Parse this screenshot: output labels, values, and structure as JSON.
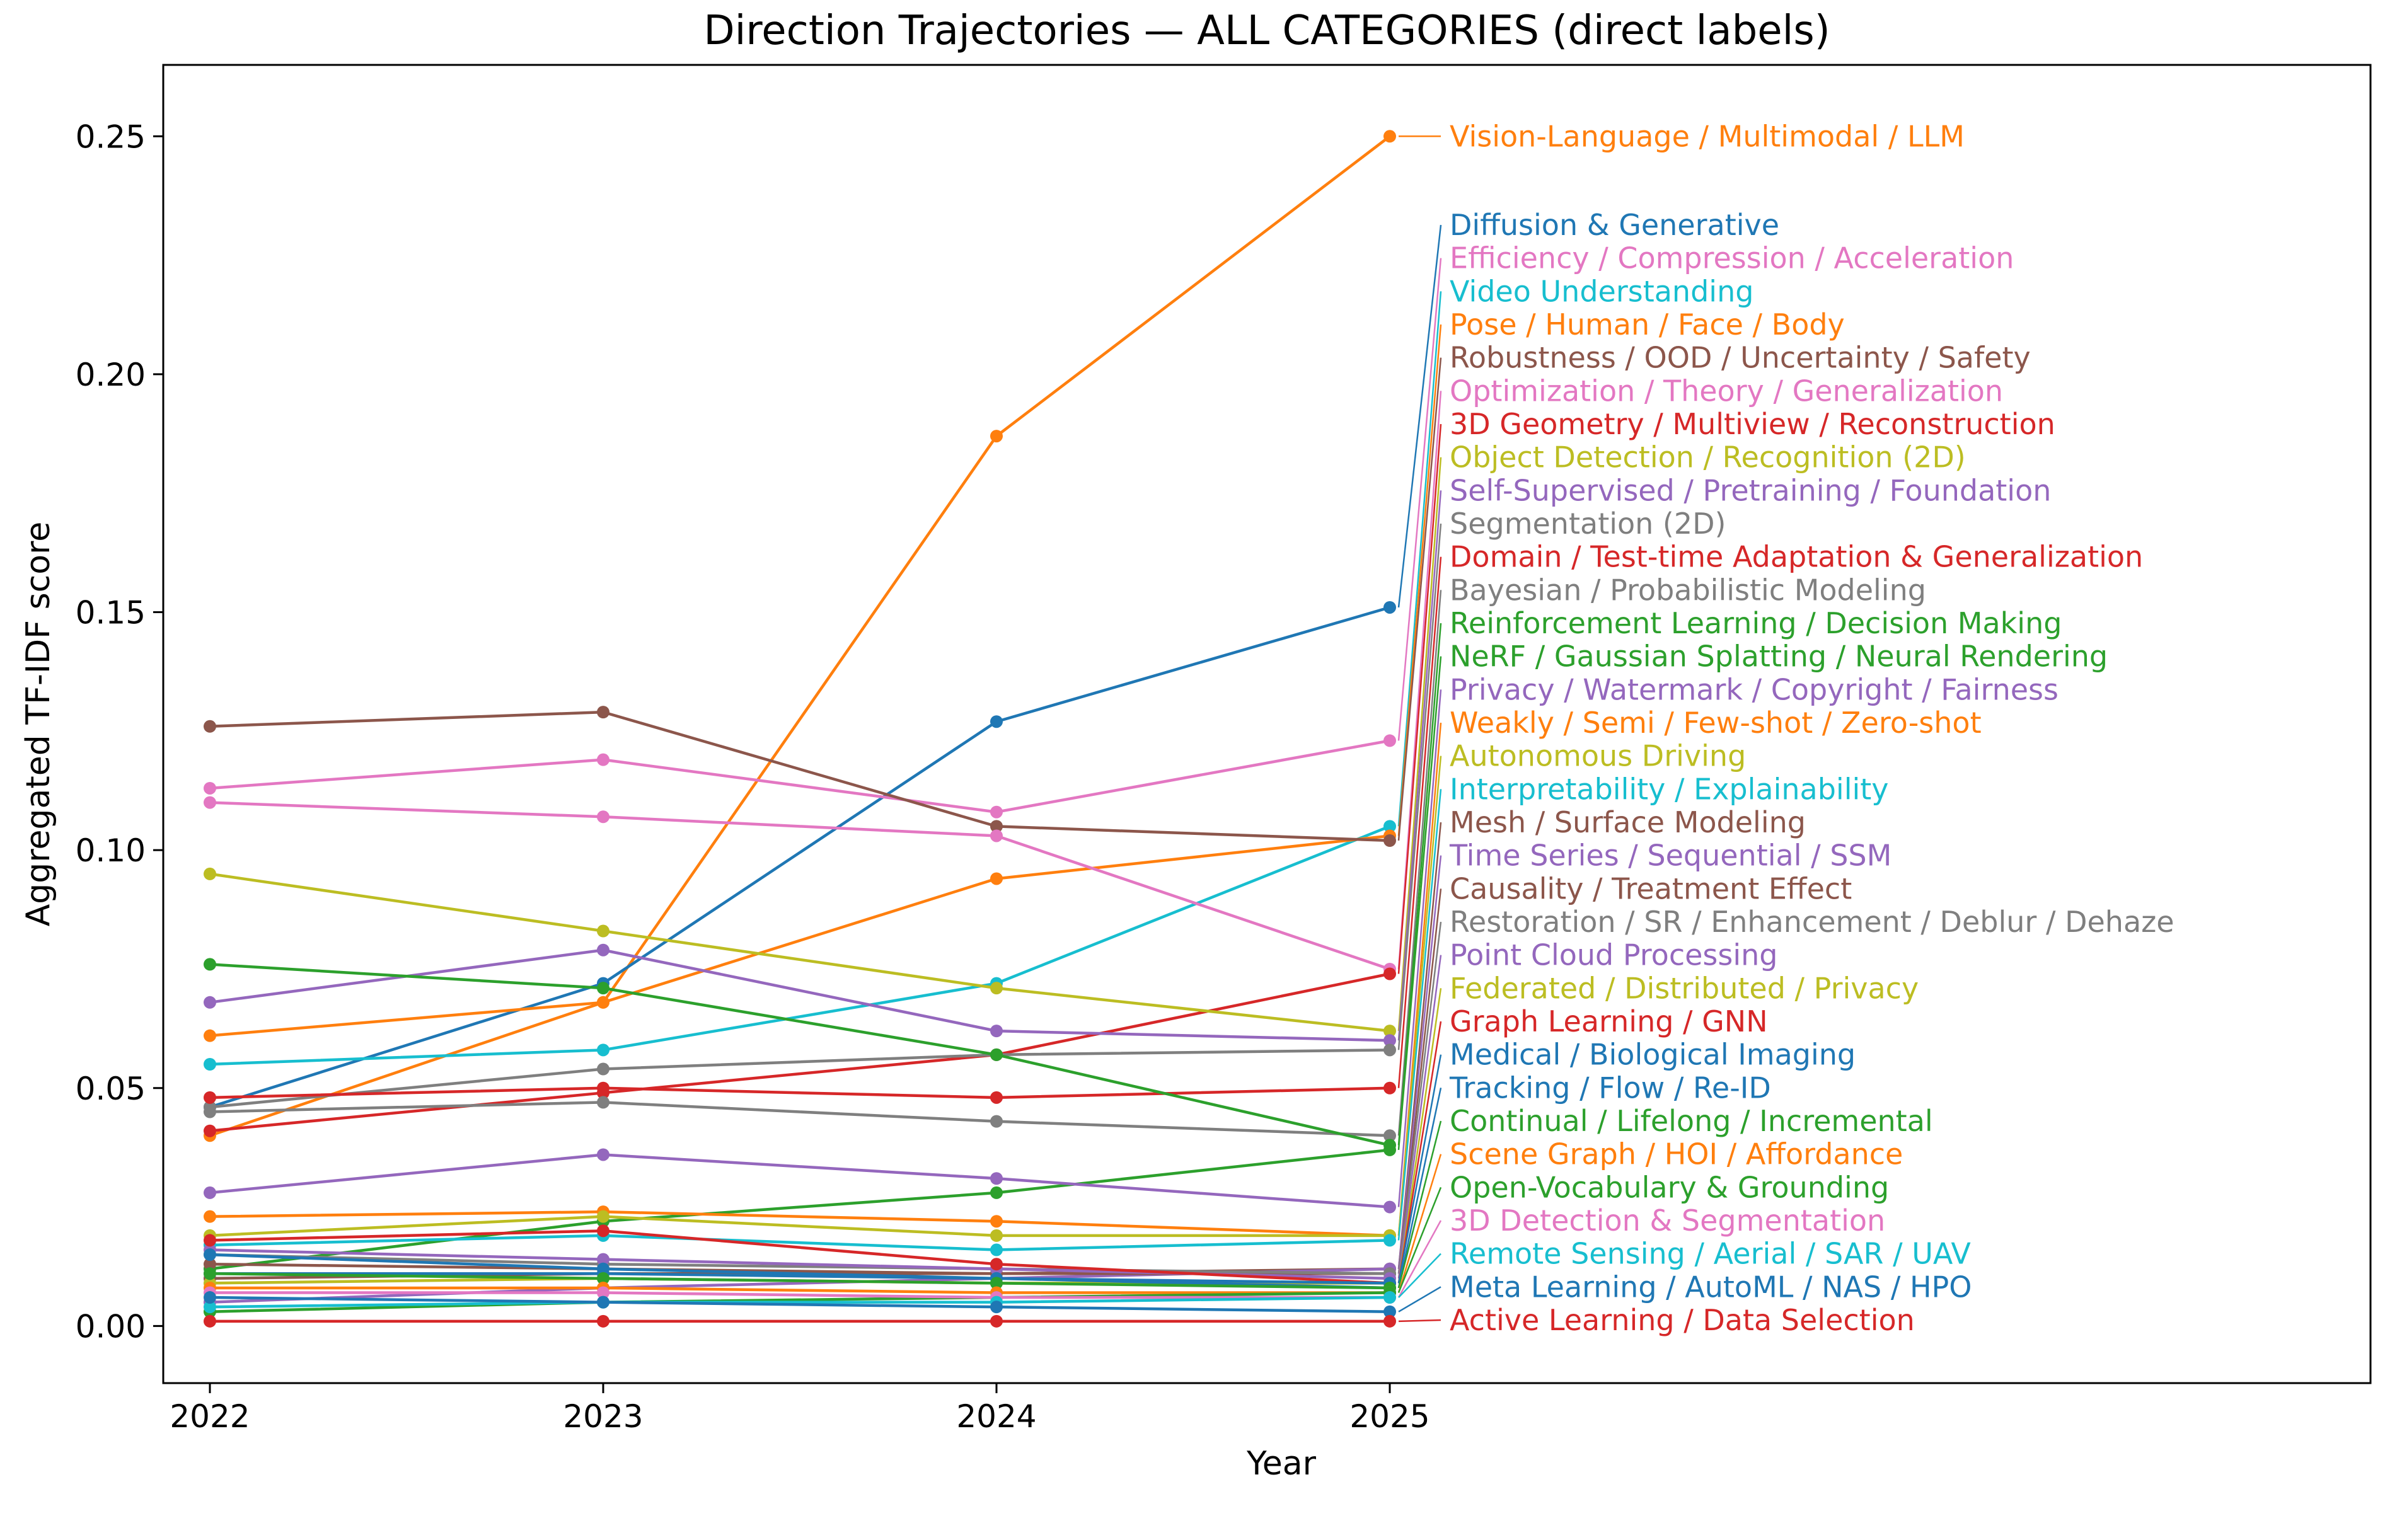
{
  "chart_data": {
    "type": "line",
    "title": "Direction Trajectories — ALL CATEGORIES (direct labels)",
    "xlabel": "Year",
    "ylabel": "Aggregated TF-IDF score",
    "x": [
      2022,
      2023,
      2024,
      2025
    ],
    "x_tick_labels": [
      "2022",
      "2023",
      "2024",
      "2025"
    ],
    "y_ticks": [
      0.0,
      0.05,
      0.1,
      0.15,
      0.2,
      0.25
    ],
    "y_tick_labels": [
      "0.00",
      "0.05",
      "0.10",
      "0.15",
      "0.20",
      "0.25"
    ],
    "ylim": [
      -0.012,
      0.265
    ],
    "grid": false,
    "legend_position": "direct labels, right side",
    "marker": "circle",
    "series": [
      {
        "name": "Vision-Language / Multimodal / LLM",
        "color": "#ff7f0e",
        "values": [
          0.04,
          0.068,
          0.187,
          0.25
        ]
      },
      {
        "name": "Diffusion & Generative",
        "color": "#1f77b4",
        "values": [
          0.046,
          0.072,
          0.127,
          0.151
        ]
      },
      {
        "name": "Efficiency / Compression / Acceleration",
        "color": "#e377c2",
        "values": [
          0.113,
          0.119,
          0.108,
          0.123
        ]
      },
      {
        "name": "Video Understanding",
        "color": "#17becf",
        "values": [
          0.055,
          0.058,
          0.072,
          0.105
        ]
      },
      {
        "name": "Pose / Human / Face / Body",
        "color": "#ff7f0e",
        "values": [
          0.061,
          0.068,
          0.094,
          0.103
        ]
      },
      {
        "name": "Robustness / OOD / Uncertainty / Safety",
        "color": "#8c564b",
        "values": [
          0.126,
          0.129,
          0.105,
          0.102
        ]
      },
      {
        "name": "Optimization / Theory / Generalization",
        "color": "#e377c2",
        "values": [
          0.11,
          0.107,
          0.103,
          0.075
        ]
      },
      {
        "name": "3D Geometry / Multiview / Reconstruction",
        "color": "#d62728",
        "values": [
          0.041,
          0.049,
          0.057,
          0.074
        ]
      },
      {
        "name": "Object Detection / Recognition (2D)",
        "color": "#bcbd22",
        "values": [
          0.095,
          0.083,
          0.071,
          0.062
        ]
      },
      {
        "name": "Self-Supervised / Pretraining / Foundation",
        "color": "#9467bd",
        "values": [
          0.068,
          0.079,
          0.062,
          0.06
        ]
      },
      {
        "name": "Segmentation (2D)",
        "color": "#7f7f7f",
        "values": [
          0.046,
          0.054,
          0.057,
          0.058
        ]
      },
      {
        "name": "Domain / Test-time Adaptation & Generalization",
        "color": "#d62728",
        "values": [
          0.048,
          0.05,
          0.048,
          0.05
        ]
      },
      {
        "name": "Bayesian / Probabilistic Modeling",
        "color": "#7f7f7f",
        "values": [
          0.045,
          0.047,
          0.043,
          0.04
        ]
      },
      {
        "name": "Reinforcement Learning / Decision Making",
        "color": "#2ca02c",
        "values": [
          0.076,
          0.071,
          0.057,
          0.038
        ]
      },
      {
        "name": "NeRF / Gaussian Splatting / Neural Rendering",
        "color": "#2ca02c",
        "values": [
          0.012,
          0.022,
          0.028,
          0.037
        ]
      },
      {
        "name": "Privacy / Watermark / Copyright / Fairness",
        "color": "#9467bd",
        "values": [
          0.028,
          0.036,
          0.031,
          0.025
        ]
      },
      {
        "name": "Weakly / Semi / Few-shot / Zero-shot",
        "color": "#ff7f0e",
        "values": [
          0.023,
          0.024,
          0.022,
          0.019
        ]
      },
      {
        "name": "Autonomous Driving",
        "color": "#bcbd22",
        "values": [
          0.019,
          0.023,
          0.019,
          0.019
        ]
      },
      {
        "name": "Interpretability / Explainability",
        "color": "#17becf",
        "values": [
          0.017,
          0.019,
          0.016,
          0.018
        ]
      },
      {
        "name": "Mesh / Surface Modeling",
        "color": "#8c564b",
        "values": [
          0.013,
          0.012,
          0.011,
          0.012
        ]
      },
      {
        "name": "Time Series / Sequential / SSM",
        "color": "#9467bd",
        "values": [
          0.005,
          0.008,
          0.01,
          0.012
        ]
      },
      {
        "name": "Causality / Treatment Effect",
        "color": "#8c564b",
        "values": [
          0.01,
          0.011,
          0.011,
          0.011
        ]
      },
      {
        "name": "Restoration / SR / Enhancement / Deblur / Dehaze",
        "color": "#7f7f7f",
        "values": [
          0.015,
          0.013,
          0.012,
          0.011
        ]
      },
      {
        "name": "Point Cloud Processing",
        "color": "#9467bd",
        "values": [
          0.016,
          0.014,
          0.012,
          0.01
        ]
      },
      {
        "name": "Federated / Distributed / Privacy",
        "color": "#bcbd22",
        "values": [
          0.009,
          0.01,
          0.009,
          0.009
        ]
      },
      {
        "name": "Graph Learning / GNN",
        "color": "#d62728",
        "values": [
          0.018,
          0.02,
          0.013,
          0.009
        ]
      },
      {
        "name": "Medical / Biological Imaging",
        "color": "#1f77b4",
        "values": [
          0.011,
          0.011,
          0.01,
          0.009
        ]
      },
      {
        "name": "Tracking / Flow / Re-ID",
        "color": "#1f77b4",
        "values": [
          0.015,
          0.012,
          0.01,
          0.008
        ]
      },
      {
        "name": "Continual / Lifelong / Incremental",
        "color": "#2ca02c",
        "values": [
          0.011,
          0.01,
          0.009,
          0.008
        ]
      },
      {
        "name": "Scene Graph / HOI / Affordance",
        "color": "#ff7f0e",
        "values": [
          0.008,
          0.008,
          0.007,
          0.007
        ]
      },
      {
        "name": "Open-Vocabulary & Grounding",
        "color": "#2ca02c",
        "values": [
          0.003,
          0.005,
          0.006,
          0.007
        ]
      },
      {
        "name": "3D Detection & Segmentation",
        "color": "#e377c2",
        "values": [
          0.007,
          0.007,
          0.006,
          0.006
        ]
      },
      {
        "name": "Remote Sensing / Aerial / SAR / UAV",
        "color": "#17becf",
        "values": [
          0.004,
          0.005,
          0.005,
          0.006
        ]
      },
      {
        "name": "Meta Learning / AutoML / NAS / HPO",
        "color": "#1f77b4",
        "values": [
          0.006,
          0.005,
          0.004,
          0.003
        ]
      },
      {
        "name": "Active Learning / Data Selection",
        "color": "#d62728",
        "values": [
          0.001,
          0.001,
          0.001,
          0.001
        ]
      }
    ]
  }
}
